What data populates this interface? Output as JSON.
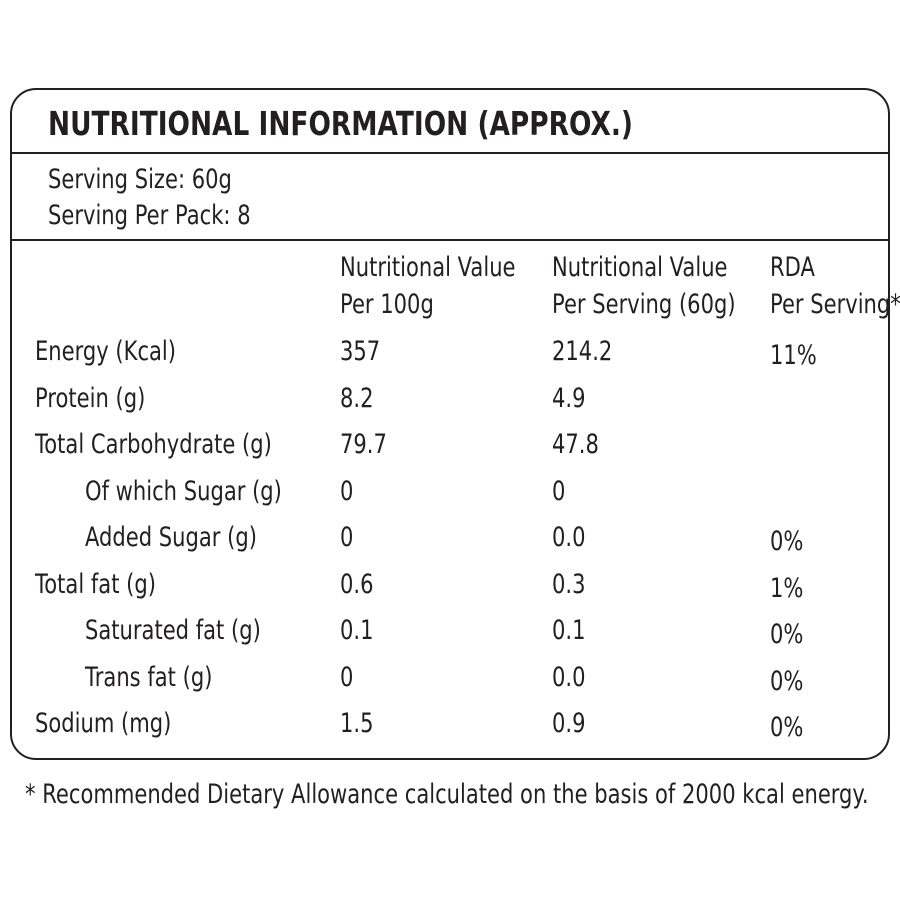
{
  "title": "NUTRITIONAL INFORMATION (APPROX.)",
  "serving": [
    "Serving Size: 60g",
    "Serving Per Pack: 8"
  ],
  "table": {
    "header": [
      [
        "Nutritional Value",
        "Per 100g"
      ],
      [
        "Nutritional Value",
        "Per Serving (60g)"
      ],
      [
        "RDA",
        "Per Serving*"
      ]
    ],
    "rows": [
      [
        "Energy (Kcal)",
        "357",
        "214.2",
        "11%"
      ],
      [
        "Protein (g)",
        "8.2",
        "4.9"
      ],
      [
        "Total Carbohydrate (g)",
        "79.7",
        "47.8"
      ],
      [
        "Of which Sugar (g)",
        "0",
        "0"
      ],
      [
        "Added Sugar (g)",
        "0",
        "0.0",
        "0%"
      ],
      [
        "Total fat (g)",
        "0.6",
        "0.3",
        "1%"
      ],
      [
        "Saturated fat (g)",
        "0.1",
        "0.1",
        "0%"
      ],
      [
        "Trans fat (g)",
        "0",
        "0.0",
        "0%"
      ],
      [
        "Sodium (mg)",
        "1.5",
        "0.9",
        "0%"
      ]
    ]
  },
  "footnote": "* Recommended Dietary Allowance calculated on the basis of 2000 kcal energy."
}
